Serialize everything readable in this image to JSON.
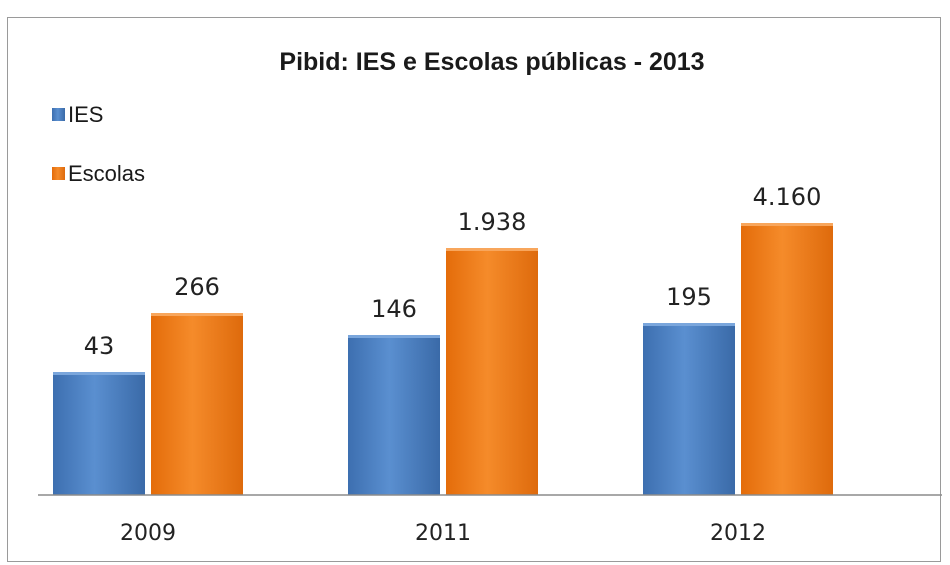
{
  "chart_data": {
    "type": "bar",
    "title": "Pibid: IES e Escolas públicas - 2013",
    "categories": [
      "2009",
      "2011",
      "2012"
    ],
    "series": [
      {
        "name": "IES",
        "color": "#4a7ebb",
        "values": [
          43,
          146,
          195
        ],
        "labels": [
          "43",
          "146",
          "195"
        ]
      },
      {
        "name": "Escolas",
        "color": "#f07c1a",
        "values": [
          266,
          1938,
          4160
        ],
        "labels": [
          "266",
          "1.938",
          "4.160"
        ]
      }
    ],
    "xlabel": "",
    "ylabel": "",
    "grid": false,
    "legend_position": "top-left",
    "y_axis_visible": false
  }
}
